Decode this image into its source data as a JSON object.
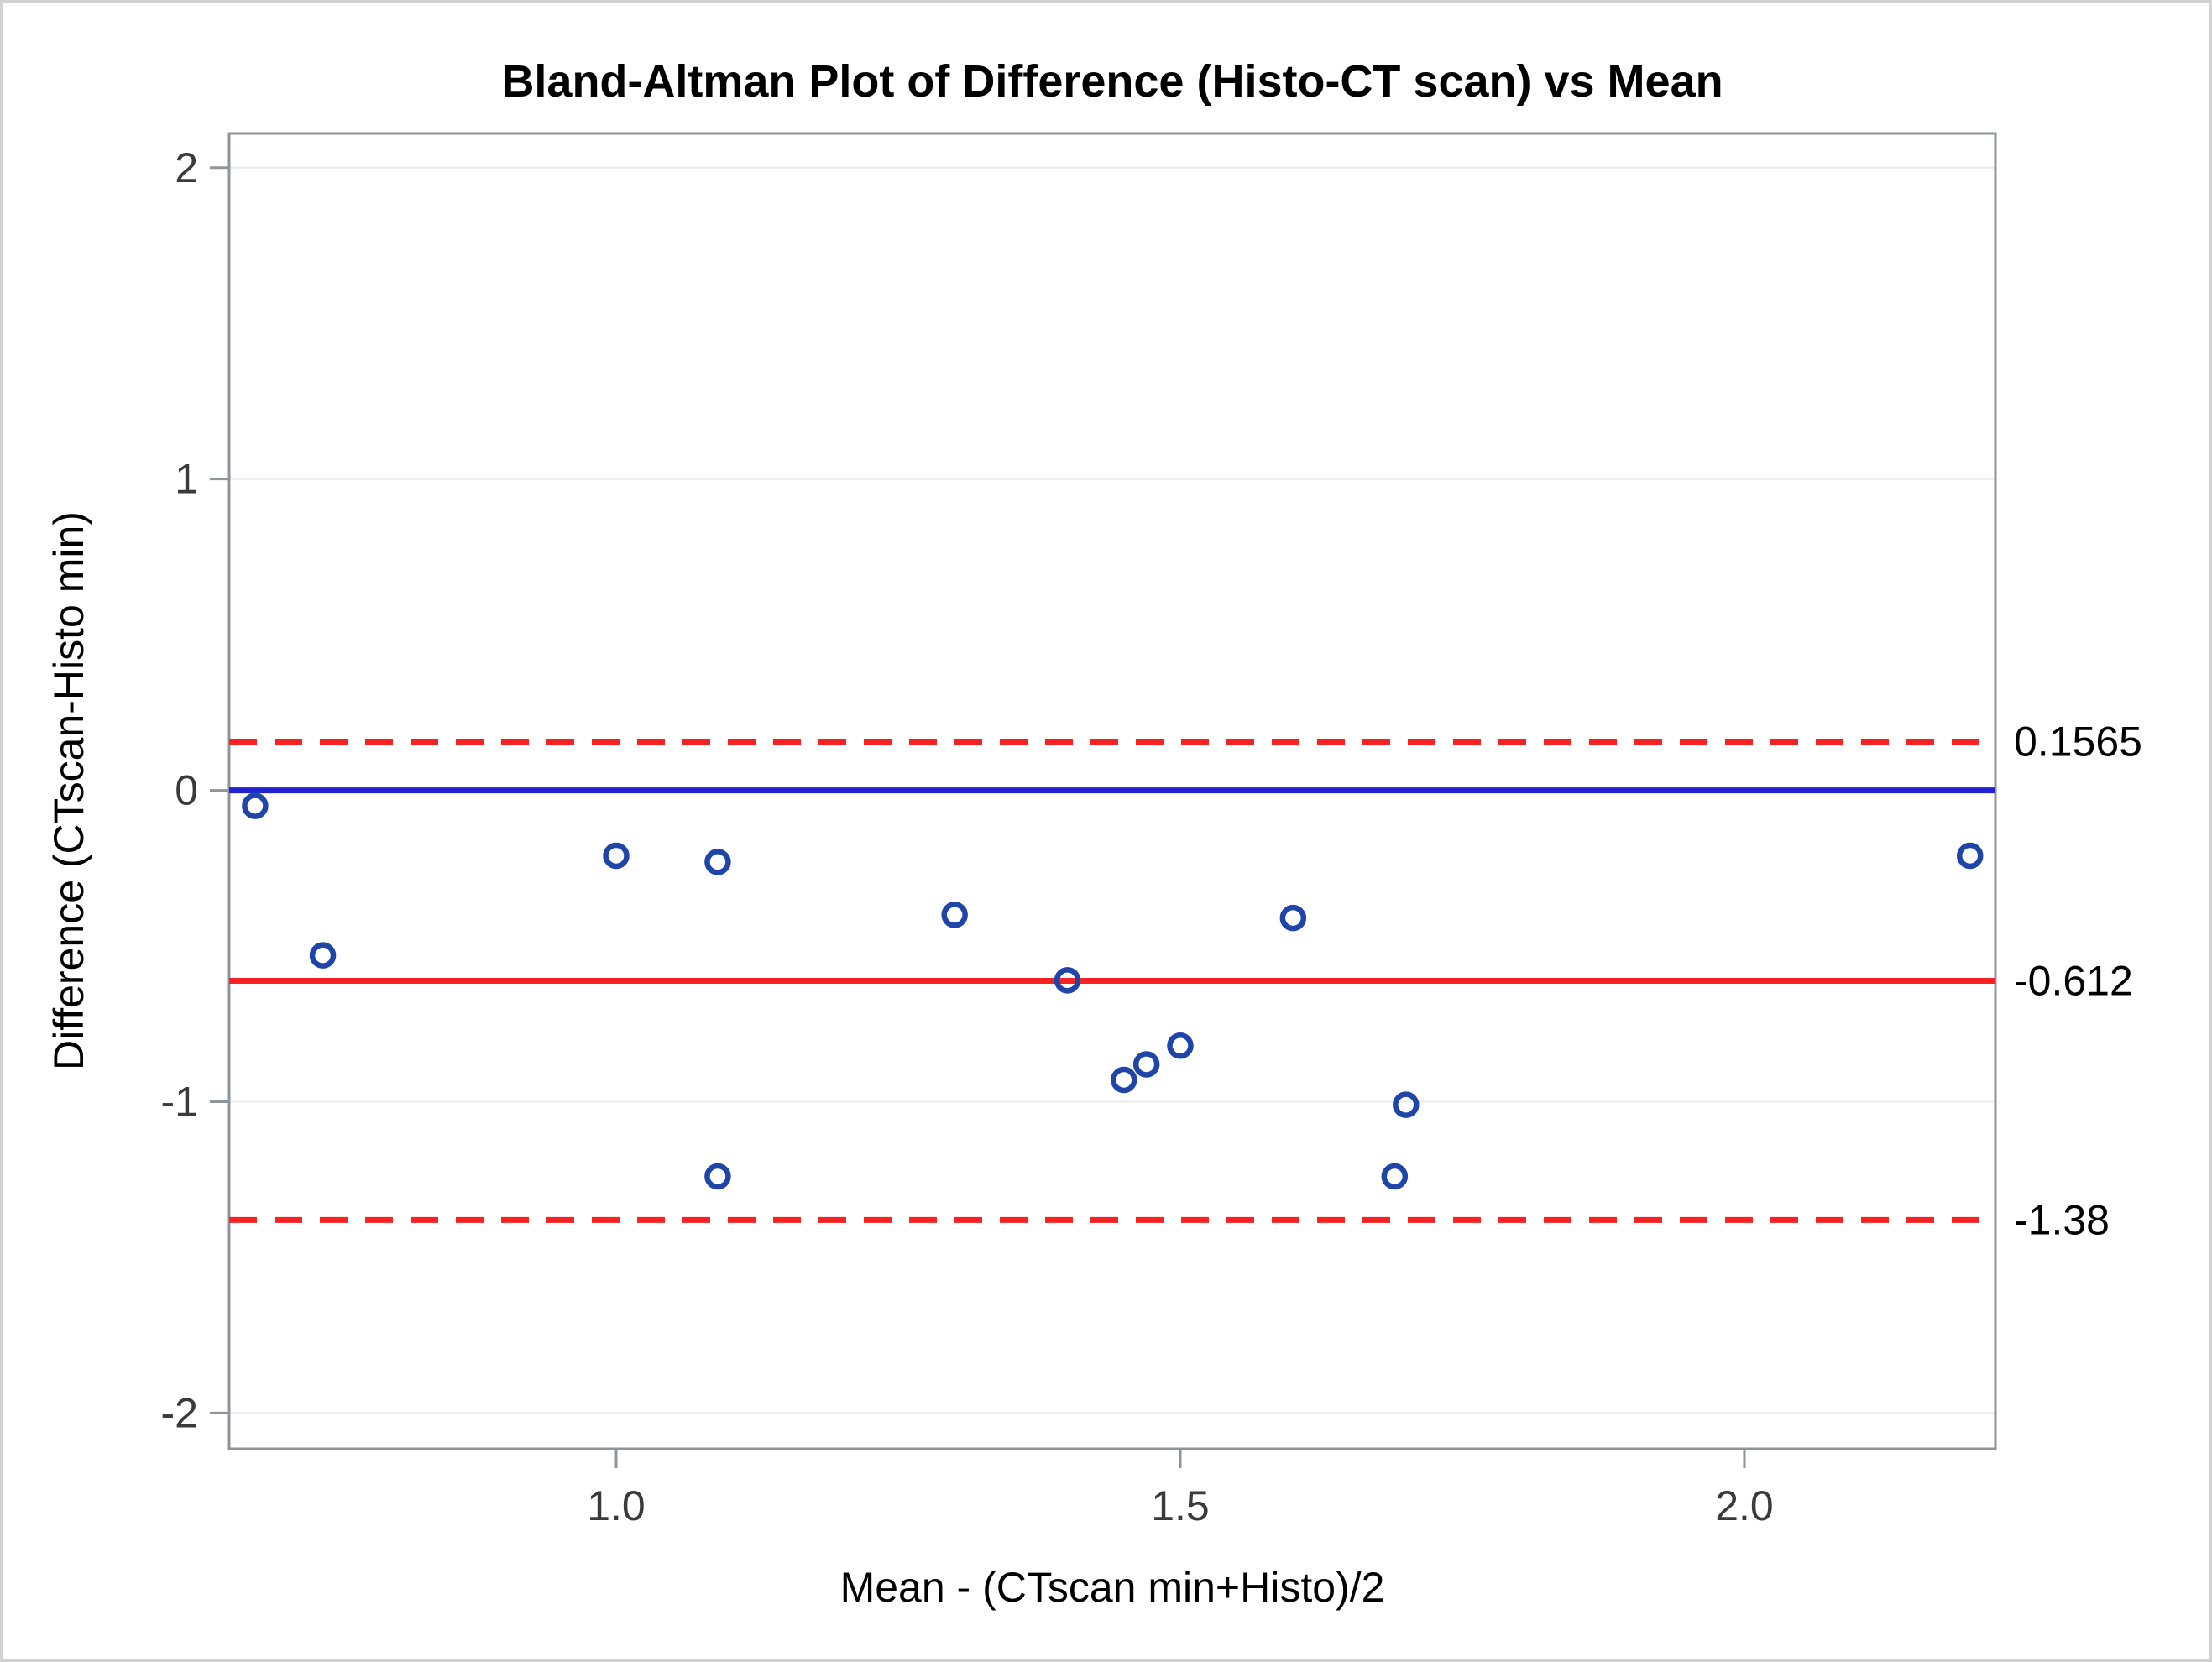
{
  "chart_data": {
    "type": "scatter",
    "title": "Bland-Altman Plot of Difference (Histo-CT scan) vs Mean",
    "xlabel": "Mean - (CTscan min+Histo)/2",
    "ylabel": "Difference (CTscan-Histo min)",
    "xlim": [
      0.657,
      2.2225
    ],
    "ylim": [
      -2.115,
      2.11
    ],
    "x_ticks": {
      "values": [
        1.0,
        1.5,
        2.0
      ],
      "labels": [
        "1.0",
        "1.5",
        "2.0"
      ]
    },
    "y_ticks": {
      "values": [
        -2,
        -1,
        0,
        1,
        2
      ],
      "labels": [
        "-2",
        "-1",
        "0",
        "1",
        "2"
      ]
    },
    "grid": "horizontal-only",
    "legend": "none",
    "marker": {
      "shape": "open-circle",
      "color": "#1f45a8"
    },
    "points": [
      {
        "x": 0.68,
        "y": -0.05
      },
      {
        "x": 0.74,
        "y": -0.53
      },
      {
        "x": 1.0,
        "y": -0.21
      },
      {
        "x": 1.09,
        "y": -0.23
      },
      {
        "x": 1.09,
        "y": -1.24
      },
      {
        "x": 1.3,
        "y": -0.4
      },
      {
        "x": 1.4,
        "y": -0.61
      },
      {
        "x": 1.45,
        "y": -0.93
      },
      {
        "x": 1.47,
        "y": -0.88
      },
      {
        "x": 1.5,
        "y": -0.82
      },
      {
        "x": 1.6,
        "y": -0.41
      },
      {
        "x": 1.69,
        "y": -1.24
      },
      {
        "x": 1.7,
        "y": -1.01
      },
      {
        "x": 2.2,
        "y": -0.21
      }
    ],
    "reference_lines": [
      {
        "name": "zero-line",
        "value": 0,
        "style": "solid",
        "color_key": "blue_line",
        "label": ""
      },
      {
        "name": "upper-loa-line",
        "value": 0.1565,
        "style": "dashed",
        "color_key": "red_line",
        "label": "0.1565"
      },
      {
        "name": "mean-diff-line",
        "value": -0.612,
        "style": "solid",
        "color_key": "red_line",
        "label": "-0.612"
      },
      {
        "name": "lower-loa-line",
        "value": -1.38,
        "style": "dashed",
        "color_key": "red_line",
        "label": "-1.38"
      }
    ]
  },
  "colors": {
    "blue_line": "#2121d2",
    "red_line": "#f82222",
    "marker": "#1f45a8",
    "frame": "#8e949b",
    "grid": "#ebebeb",
    "tick_text": "#3a3a3a",
    "label_text": "#000000",
    "figure_border": "#d2d2d2",
    "background": "#ffffff"
  }
}
